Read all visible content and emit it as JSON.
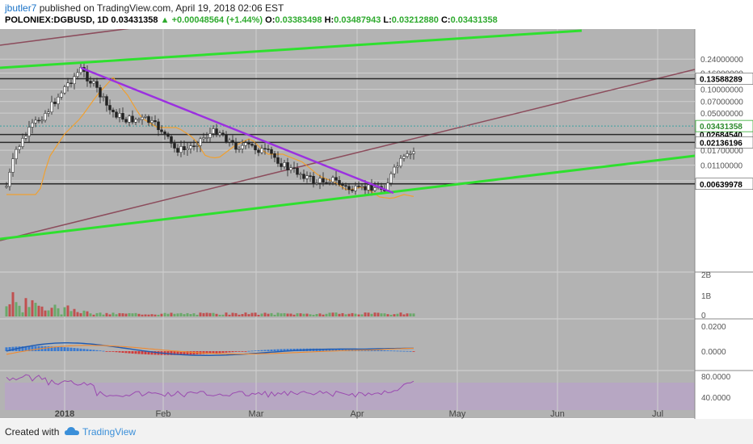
{
  "header": {
    "author": "jbutler7",
    "published": "published on TradingView.com, April 19, 2018 02:06 EST",
    "symbol": "POLONIEX:DGBUSD, 1D",
    "last": "0.03431358",
    "change": "+0.00048564 (+1.44%)",
    "o_label": "O:",
    "o": "0.03383498",
    "h_label": "H:",
    "h": "0.03487943",
    "l_label": "L:",
    "l": "0.03212880",
    "c_label": "C:",
    "c": "0.03431358"
  },
  "footer": {
    "created": "Created with",
    "brand": "TradingView"
  },
  "chart_data": {
    "type": "candlestick",
    "scale": "log",
    "price_axis_ticks": [
      "0.24000000",
      "0.16000000",
      "0.10000000",
      "0.07000000",
      "0.05000000",
      "0.01700000",
      "0.01100000",
      "0.00700000"
    ],
    "x_axis_ticks": [
      "2018",
      "Feb",
      "Mar",
      "Apr",
      "May",
      "Jun",
      "Jul"
    ],
    "horizontal_levels": [
      {
        "value": 0.13588289,
        "label": "0.13588289"
      },
      {
        "value": 0.0268454,
        "label": "0.02684540"
      },
      {
        "value": 0.02136196,
        "label": "0.02136196"
      },
      {
        "value": 0.00639978,
        "label": "0.00639978"
      }
    ],
    "current_price": {
      "value": 0.03431358,
      "label": "0.03431358"
    },
    "volume_ticks": [
      "2B",
      "1B",
      "0"
    ],
    "macd_ticks": [
      "0.0200",
      "0.0000"
    ],
    "rsi_ticks": [
      "80.0000",
      "40.0000"
    ],
    "colors": {
      "up": "#2e8b2e",
      "down": "#c02a2a",
      "grid": "#cfcfcf",
      "bg": "#b3b3b3",
      "trend_green": "#2ee02e",
      "trend_purple": "#9b30e0",
      "channel": "#8c4c5c",
      "ma": "#f0a030",
      "macd": "#1f5ab0",
      "signal": "#f08a30",
      "rsi": "#9a4ab0"
    }
  }
}
